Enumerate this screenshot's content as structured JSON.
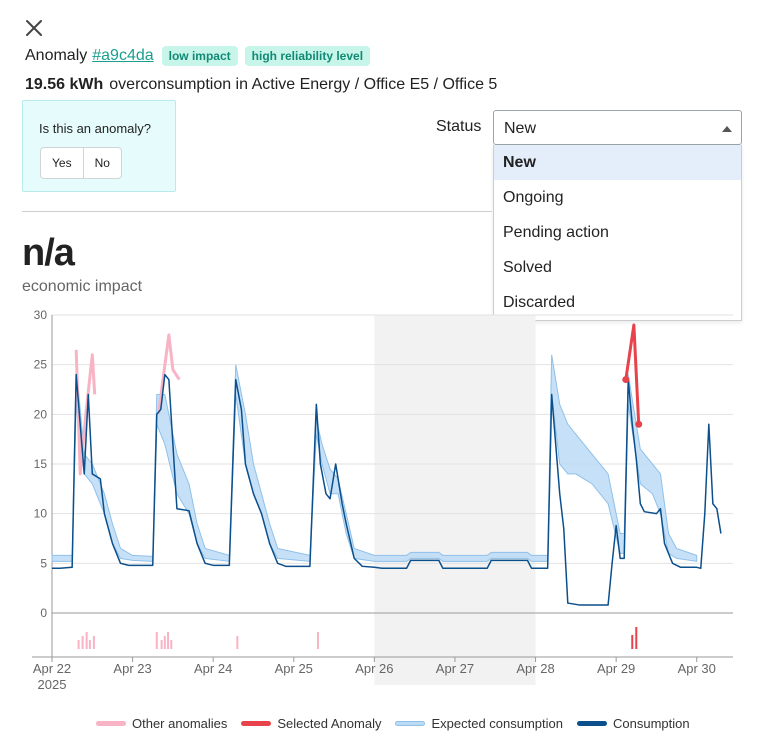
{
  "header": {
    "prefix": "Anomaly",
    "anomaly_id": "#a9c4da",
    "badges": [
      "low impact",
      "high reliability level"
    ],
    "amount": "19.56 kWh",
    "description": "overconsumption in Active Energy / Office E5 / Office 5"
  },
  "feedback": {
    "question": "Is this an anomaly?",
    "yes": "Yes",
    "no": "No"
  },
  "status": {
    "label": "Status",
    "selected": "New",
    "options": [
      "New",
      "Ongoing",
      "Pending action",
      "Solved",
      "Discarded"
    ]
  },
  "impact": {
    "value": "n/a",
    "label": "economic impact"
  },
  "colors": {
    "other": "#f8b4c4",
    "selected": "#e8434b",
    "expected": "#bcdcf6",
    "consumption": "#0b4f8c",
    "shade": "#f2f2f2",
    "badge_bg": "#c7f5ea",
    "badge_text": "#118a74"
  },
  "chart_data": {
    "type": "line",
    "ylim": [
      0,
      30
    ],
    "yticks": [
      0,
      5,
      10,
      15,
      20,
      25,
      30
    ],
    "xlim": [
      0,
      8.45
    ],
    "xticks": [
      {
        "x": 0,
        "label": "Apr 22",
        "sub": "2025"
      },
      {
        "x": 1,
        "label": "Apr 23"
      },
      {
        "x": 2,
        "label": "Apr 24"
      },
      {
        "x": 3,
        "label": "Apr 25"
      },
      {
        "x": 4,
        "label": "Apr 26"
      },
      {
        "x": 5,
        "label": "Apr 27"
      },
      {
        "x": 6,
        "label": "Apr 28"
      },
      {
        "x": 7,
        "label": "Apr 29"
      },
      {
        "x": 8,
        "label": "Apr 30"
      }
    ],
    "shaded_range": [
      4,
      6
    ],
    "legend": [
      "Other anomalies",
      "Selected Anomaly",
      "Expected consumption",
      "Consumption"
    ],
    "consumption": [
      [
        0,
        4.5
      ],
      [
        0.1,
        4.5
      ],
      [
        0.25,
        4.6
      ],
      [
        0.3,
        24
      ],
      [
        0.35,
        19
      ],
      [
        0.4,
        14
      ],
      [
        0.45,
        22
      ],
      [
        0.5,
        14
      ],
      [
        0.6,
        13.5
      ],
      [
        0.65,
        10
      ],
      [
        0.75,
        7
      ],
      [
        0.85,
        5
      ],
      [
        0.95,
        4.8
      ],
      [
        1.25,
        4.8
      ],
      [
        1.3,
        20
      ],
      [
        1.35,
        20.5
      ],
      [
        1.4,
        24
      ],
      [
        1.45,
        23.5
      ],
      [
        1.55,
        10.5
      ],
      [
        1.7,
        10.3
      ],
      [
        1.8,
        7
      ],
      [
        1.9,
        5
      ],
      [
        2.0,
        4.8
      ],
      [
        2.2,
        4.8
      ],
      [
        2.28,
        23.5
      ],
      [
        2.35,
        20.5
      ],
      [
        2.4,
        15
      ],
      [
        2.5,
        12
      ],
      [
        2.6,
        10
      ],
      [
        2.7,
        7
      ],
      [
        2.8,
        5
      ],
      [
        2.9,
        4.7
      ],
      [
        3.2,
        4.7
      ],
      [
        3.28,
        21
      ],
      [
        3.33,
        15
      ],
      [
        3.4,
        12
      ],
      [
        3.45,
        11.5
      ],
      [
        3.52,
        15
      ],
      [
        3.6,
        11
      ],
      [
        3.65,
        9
      ],
      [
        3.75,
        5.5
      ],
      [
        3.85,
        4.7
      ],
      [
        4.0,
        4.6
      ],
      [
        4.1,
        4.5
      ],
      [
        4.4,
        4.5
      ],
      [
        4.45,
        5.3
      ],
      [
        4.8,
        5.3
      ],
      [
        4.85,
        4.5
      ],
      [
        5.4,
        4.5
      ],
      [
        5.45,
        5.3
      ],
      [
        5.9,
        5.3
      ],
      [
        5.95,
        4.5
      ],
      [
        6.15,
        4.5
      ],
      [
        6.2,
        22
      ],
      [
        6.25,
        17
      ],
      [
        6.3,
        12
      ],
      [
        6.35,
        8.5
      ],
      [
        6.4,
        1
      ],
      [
        6.55,
        0.8
      ],
      [
        6.9,
        0.8
      ],
      [
        6.95,
        5
      ],
      [
        7.0,
        8.8
      ],
      [
        7.05,
        5.5
      ],
      [
        7.1,
        5.5
      ],
      [
        7.15,
        23.5
      ],
      [
        7.2,
        19
      ],
      [
        7.25,
        15.5
      ],
      [
        7.3,
        11
      ],
      [
        7.35,
        10.2
      ],
      [
        7.5,
        10
      ],
      [
        7.55,
        10.5
      ],
      [
        7.6,
        7
      ],
      [
        7.7,
        5
      ],
      [
        7.8,
        4.6
      ],
      [
        8.0,
        4.6
      ],
      [
        8.05,
        4.5
      ],
      [
        8.1,
        10
      ],
      [
        8.15,
        19
      ],
      [
        8.2,
        11
      ],
      [
        8.25,
        10.5
      ],
      [
        8.3,
        8
      ]
    ],
    "expected_band": [
      [
        0,
        5.2,
        5.8
      ],
      [
        0.25,
        5.2,
        5.8
      ],
      [
        0.3,
        21,
        25
      ],
      [
        0.4,
        14,
        16
      ],
      [
        0.5,
        13,
        15
      ],
      [
        0.65,
        10,
        12
      ],
      [
        0.75,
        7,
        9
      ],
      [
        0.85,
        5.5,
        6.5
      ],
      [
        1.0,
        5.3,
        5.8
      ],
      [
        1.25,
        5.2,
        5.7
      ],
      [
        1.3,
        19,
        22
      ],
      [
        1.4,
        17,
        22
      ],
      [
        1.55,
        12,
        16
      ],
      [
        1.7,
        10,
        13
      ],
      [
        1.8,
        7,
        9
      ],
      [
        1.9,
        5.5,
        6.5
      ],
      [
        2.2,
        5.2,
        5.8
      ],
      [
        2.28,
        22,
        25
      ],
      [
        2.4,
        15,
        20
      ],
      [
        2.5,
        12,
        15
      ],
      [
        2.6,
        10,
        12
      ],
      [
        2.7,
        7,
        9
      ],
      [
        2.8,
        5.5,
        6.5
      ],
      [
        3.2,
        5.2,
        5.8
      ],
      [
        3.28,
        18,
        19.5
      ],
      [
        3.35,
        15,
        17
      ],
      [
        3.45,
        12,
        14.5
      ],
      [
        3.55,
        12,
        13.5
      ],
      [
        3.65,
        8,
        10
      ],
      [
        3.75,
        5.5,
        6.5
      ],
      [
        4.0,
        5.2,
        5.8
      ],
      [
        4.4,
        5.2,
        5.8
      ],
      [
        4.45,
        5.5,
        6.1
      ],
      [
        4.8,
        5.5,
        6.1
      ],
      [
        4.85,
        5.2,
        5.8
      ],
      [
        5.4,
        5.2,
        5.8
      ],
      [
        5.45,
        5.5,
        6.1
      ],
      [
        5.9,
        5.5,
        6.1
      ],
      [
        5.95,
        5.2,
        5.8
      ],
      [
        6.15,
        5.2,
        5.8
      ],
      [
        6.2,
        22,
        26
      ],
      [
        6.3,
        15,
        21
      ],
      [
        6.4,
        14,
        19
      ],
      [
        6.5,
        14,
        18
      ],
      [
        6.7,
        13,
        16
      ],
      [
        6.9,
        11,
        14
      ],
      [
        7.05,
        6,
        8
      ],
      [
        7.1,
        6,
        8
      ],
      [
        7.15,
        21,
        24
      ],
      [
        7.3,
        13,
        16.5
      ],
      [
        7.45,
        12,
        15
      ],
      [
        7.55,
        10,
        14
      ],
      [
        7.65,
        6,
        8
      ],
      [
        7.75,
        5.5,
        6.5
      ],
      [
        8.0,
        5.2,
        5.8
      ]
    ],
    "other_anomalies": [
      [
        [
          0.3,
          26.5
        ],
        [
          0.35,
          14
        ],
        [
          0.42,
          20
        ],
        [
          0.5,
          26
        ],
        [
          0.53,
          22
        ]
      ],
      [
        [
          1.32,
          20
        ],
        [
          1.45,
          28
        ],
        [
          1.5,
          24.5
        ],
        [
          1.58,
          23.5
        ]
      ]
    ],
    "selected_anomaly": [
      [
        7.12,
        23.5
      ],
      [
        7.22,
        29
      ],
      [
        7.28,
        19
      ]
    ],
    "selected_points": [
      [
        7.12,
        23.5
      ],
      [
        7.28,
        19
      ]
    ],
    "other_markers": [
      0.33,
      0.38,
      0.43,
      0.47,
      0.52,
      1.3,
      1.36,
      1.4,
      1.44,
      1.48,
      2.3,
      3.3
    ],
    "selected_markers": [
      7.2,
      7.25
    ]
  }
}
